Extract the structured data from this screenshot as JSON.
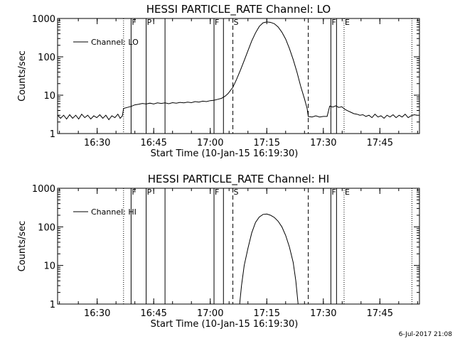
{
  "footer": {
    "date": "6-Jul-2017 21:08"
  },
  "chart_data": [
    {
      "type": "line",
      "title": "HESSI PARTICLE_RATE Channel: LO",
      "xlabel": "Start Time (10-Jan-15 16:19:30)",
      "ylabel": "Counts/sec",
      "x_unit": "minutes since 16:19:30",
      "xlim": [
        0,
        96
      ],
      "ylim": [
        1,
        1000
      ],
      "yscale": "log",
      "xticks": [
        {
          "x": 10.5,
          "label": "16:30"
        },
        {
          "x": 25.5,
          "label": "16:45"
        },
        {
          "x": 40.5,
          "label": "17:00"
        },
        {
          "x": 55.5,
          "label": "17:15"
        },
        {
          "x": 70.5,
          "label": "17:30"
        },
        {
          "x": 85.5,
          "label": "17:45"
        }
      ],
      "yticks": [
        {
          "y": 1,
          "label": "1"
        },
        {
          "y": 10,
          "label": "10"
        },
        {
          "y": 100,
          "label": "100"
        },
        {
          "y": 1000,
          "label": "1000"
        }
      ],
      "legend": {
        "position": "top-left",
        "entries": [
          "Channel: LO"
        ]
      },
      "markers": [
        {
          "x": 17.5,
          "style": "dotted",
          "label": ""
        },
        {
          "x": 19.5,
          "style": "solid",
          "label": "F"
        },
        {
          "x": 23.5,
          "style": "solid",
          "label": "P"
        },
        {
          "x": 28.5,
          "style": "solid",
          "label": ""
        },
        {
          "x": 41.5,
          "style": "solid",
          "label": "F"
        },
        {
          "x": 44.0,
          "style": "solid",
          "label": ""
        },
        {
          "x": 46.5,
          "style": "dashed",
          "label": "S"
        },
        {
          "x": 66.5,
          "style": "dashed",
          "label": ""
        },
        {
          "x": 72.5,
          "style": "solid",
          "label": "F"
        },
        {
          "x": 74.0,
          "style": "solid",
          "label": ""
        },
        {
          "x": 76.0,
          "style": "dotted",
          "label": "E"
        },
        {
          "x": 94.0,
          "style": "dotted",
          "label": ""
        }
      ],
      "series": [
        {
          "name": "Channel: LO",
          "points": [
            [
              0,
              3
            ],
            [
              0.8,
              2.5
            ],
            [
              1.6,
              3
            ],
            [
              2.4,
              2.4
            ],
            [
              3.2,
              3.1
            ],
            [
              4,
              2.5
            ],
            [
              4.8,
              3
            ],
            [
              5.6,
              2.4
            ],
            [
              6.4,
              3.2
            ],
            [
              7.2,
              2.6
            ],
            [
              8,
              3
            ],
            [
              8.8,
              2.4
            ],
            [
              9.6,
              2.9
            ],
            [
              10.4,
              2.6
            ],
            [
              11.2,
              3.1
            ],
            [
              12,
              2.5
            ],
            [
              12.8,
              3
            ],
            [
              13.6,
              2.3
            ],
            [
              14.4,
              2.9
            ],
            [
              15.2,
              2.6
            ],
            [
              16,
              3.2
            ],
            [
              16.6,
              2.5
            ],
            [
              17.2,
              2.9
            ],
            [
              17.5,
              4.5
            ],
            [
              18.5,
              4.8
            ],
            [
              19.5,
              5.1
            ],
            [
              20.5,
              5.6
            ],
            [
              21.5,
              5.8
            ],
            [
              22.5,
              6.1
            ],
            [
              23.5,
              5.9
            ],
            [
              24.5,
              6.2
            ],
            [
              25.5,
              5.9
            ],
            [
              26.5,
              6.3
            ],
            [
              27.5,
              6.1
            ],
            [
              28.5,
              6.3
            ],
            [
              29.5,
              6.0
            ],
            [
              30.5,
              6.4
            ],
            [
              31.5,
              6.2
            ],
            [
              32.5,
              6.5
            ],
            [
              33.5,
              6.3
            ],
            [
              34.5,
              6.6
            ],
            [
              35.5,
              6.4
            ],
            [
              36.5,
              6.8
            ],
            [
              37.5,
              6.6
            ],
            [
              38.5,
              7
            ],
            [
              39.5,
              6.8
            ],
            [
              40.5,
              7.2
            ],
            [
              41.5,
              7.4
            ],
            [
              42.5,
              7.8
            ],
            [
              43.5,
              8.3
            ],
            [
              44.5,
              9.5
            ],
            [
              45.2,
              11
            ],
            [
              45.8,
              13
            ],
            [
              46.5,
              16
            ],
            [
              47.5,
              26
            ],
            [
              48.5,
              45
            ],
            [
              49.5,
              80
            ],
            [
              50.5,
              145
            ],
            [
              51.5,
              260
            ],
            [
              52.5,
              420
            ],
            [
              53.5,
              620
            ],
            [
              54.5,
              770
            ],
            [
              55.5,
              810
            ],
            [
              56.5,
              790
            ],
            [
              57.5,
              730
            ],
            [
              58.5,
              600
            ],
            [
              59.5,
              440
            ],
            [
              60.5,
              290
            ],
            [
              61.5,
              165
            ],
            [
              62.5,
              85
            ],
            [
              63.5,
              40
            ],
            [
              64.5,
              17
            ],
            [
              65.5,
              8
            ],
            [
              66.2,
              4.5
            ],
            [
              66.5,
              2.8
            ],
            [
              67.5,
              2.7
            ],
            [
              68.5,
              2.9
            ],
            [
              69.5,
              2.7
            ],
            [
              70.5,
              2.8
            ],
            [
              71.5,
              2.8
            ],
            [
              72.2,
              5.2
            ],
            [
              73,
              4.9
            ],
            [
              73.8,
              5.3
            ],
            [
              74.6,
              4.8
            ],
            [
              75.4,
              5.0
            ],
            [
              76.2,
              4.3
            ],
            [
              77,
              3.9
            ],
            [
              77.8,
              3.6
            ],
            [
              78.6,
              3.3
            ],
            [
              79.4,
              3.2
            ],
            [
              80.2,
              3.0
            ],
            [
              81,
              3.1
            ],
            [
              81.8,
              2.8
            ],
            [
              82.6,
              3.0
            ],
            [
              83.4,
              2.6
            ],
            [
              84.2,
              3.2
            ],
            [
              85,
              2.7
            ],
            [
              85.8,
              2.9
            ],
            [
              86.6,
              2.5
            ],
            [
              87.4,
              3.0
            ],
            [
              88.2,
              2.7
            ],
            [
              89,
              3.1
            ],
            [
              89.8,
              2.6
            ],
            [
              90.6,
              3.0
            ],
            [
              91.4,
              2.7
            ],
            [
              92.2,
              3.2
            ],
            [
              93,
              2.6
            ],
            [
              93.8,
              2.9
            ],
            [
              94.6,
              3.1
            ],
            [
              95.4,
              3.0
            ]
          ]
        }
      ]
    },
    {
      "type": "line",
      "title": "HESSI PARTICLE_RATE Channel: HI",
      "xlabel": "Start Time (10-Jan-15 16:19:30)",
      "ylabel": "Counts/sec",
      "x_unit": "minutes since 16:19:30",
      "xlim": [
        0,
        96
      ],
      "ylim": [
        1,
        1000
      ],
      "yscale": "log",
      "xticks": [
        {
          "x": 10.5,
          "label": "16:30"
        },
        {
          "x": 25.5,
          "label": "16:45"
        },
        {
          "x": 40.5,
          "label": "17:00"
        },
        {
          "x": 55.5,
          "label": "17:15"
        },
        {
          "x": 70.5,
          "label": "17:30"
        },
        {
          "x": 85.5,
          "label": "17:45"
        }
      ],
      "yticks": [
        {
          "y": 1,
          "label": "1"
        },
        {
          "y": 10,
          "label": "10"
        },
        {
          "y": 100,
          "label": "100"
        },
        {
          "y": 1000,
          "label": "1000"
        }
      ],
      "legend": {
        "position": "top-left",
        "entries": [
          "Channel: HI"
        ]
      },
      "markers": [
        {
          "x": 17.5,
          "style": "dotted",
          "label": ""
        },
        {
          "x": 19.5,
          "style": "solid",
          "label": "F"
        },
        {
          "x": 23.5,
          "style": "solid",
          "label": "P"
        },
        {
          "x": 28.5,
          "style": "solid",
          "label": ""
        },
        {
          "x": 41.5,
          "style": "solid",
          "label": "F"
        },
        {
          "x": 44.0,
          "style": "solid",
          "label": ""
        },
        {
          "x": 46.5,
          "style": "dashed",
          "label": "S"
        },
        {
          "x": 66.5,
          "style": "dashed",
          "label": ""
        },
        {
          "x": 72.5,
          "style": "solid",
          "label": "F"
        },
        {
          "x": 74.0,
          "style": "solid",
          "label": ""
        },
        {
          "x": 76.0,
          "style": "dotted",
          "label": "E"
        },
        {
          "x": 94.0,
          "style": "dotted",
          "label": ""
        }
      ],
      "series": [
        {
          "name": "Channel: HI",
          "points": [
            [
              48.3,
              1
            ],
            [
              48.8,
              3
            ],
            [
              49.5,
              10
            ],
            [
              50.5,
              28
            ],
            [
              51.5,
              70
            ],
            [
              52.5,
              130
            ],
            [
              53.5,
              180
            ],
            [
              54.5,
              210
            ],
            [
              55.5,
              215
            ],
            [
              56.5,
              200
            ],
            [
              57.5,
              175
            ],
            [
              58.5,
              140
            ],
            [
              59.5,
              100
            ],
            [
              60.5,
              60
            ],
            [
              61.5,
              30
            ],
            [
              62.5,
              12
            ],
            [
              63.2,
              4
            ],
            [
              63.8,
              1
            ]
          ]
        }
      ]
    }
  ]
}
